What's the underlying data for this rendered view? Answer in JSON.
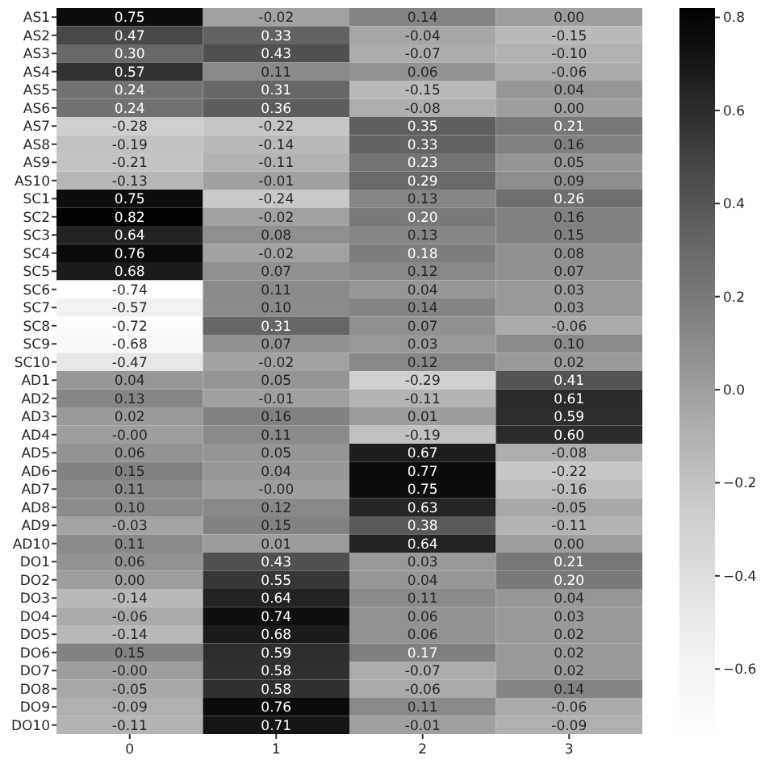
{
  "chart_data": {
    "type": "heatmap",
    "categories": [
      "0",
      "1",
      "2",
      "3"
    ],
    "y_categories": [
      "AS1",
      "AS2",
      "AS3",
      "AS4",
      "AS5",
      "AS6",
      "AS7",
      "AS8",
      "AS9",
      "AS10",
      "SC1",
      "SC2",
      "SC3",
      "SC4",
      "SC5",
      "SC6",
      "SC7",
      "SC8",
      "SC9",
      "SC10",
      "AD1",
      "AD2",
      "AD3",
      "AD4",
      "AD5",
      "AD6",
      "AD7",
      "AD8",
      "AD9",
      "AD10",
      "DO1",
      "DO2",
      "DO3",
      "DO4",
      "DO5",
      "DO6",
      "DO7",
      "DO8",
      "DO9",
      "DO10"
    ],
    "cells": [
      [
        0.75,
        -0.02,
        0.14,
        0.0
      ],
      [
        0.47,
        0.33,
        -0.04,
        -0.15
      ],
      [
        0.3,
        0.43,
        -0.07,
        -0.1
      ],
      [
        0.57,
        0.11,
        0.06,
        -0.06
      ],
      [
        0.24,
        0.31,
        -0.15,
        0.04
      ],
      [
        0.24,
        0.36,
        -0.08,
        0.0
      ],
      [
        -0.28,
        -0.22,
        0.35,
        0.21
      ],
      [
        -0.19,
        -0.14,
        0.33,
        0.16
      ],
      [
        -0.21,
        -0.11,
        0.23,
        0.05
      ],
      [
        -0.13,
        -0.01,
        0.29,
        0.09
      ],
      [
        0.75,
        -0.24,
        0.13,
        0.26
      ],
      [
        0.82,
        -0.02,
        0.2,
        0.16
      ],
      [
        0.64,
        0.08,
        0.13,
        0.15
      ],
      [
        0.76,
        -0.02,
        0.18,
        0.08
      ],
      [
        0.68,
        0.07,
        0.12,
        0.07
      ],
      [
        -0.74,
        0.11,
        0.04,
        0.03
      ],
      [
        -0.57,
        0.1,
        0.14,
        0.03
      ],
      [
        -0.72,
        0.31,
        0.07,
        -0.06
      ],
      [
        -0.68,
        0.07,
        0.03,
        0.1
      ],
      [
        -0.47,
        -0.02,
        0.12,
        0.02
      ],
      [
        0.04,
        0.05,
        -0.29,
        0.41
      ],
      [
        0.13,
        -0.01,
        -0.11,
        0.61
      ],
      [
        0.02,
        0.16,
        0.01,
        0.59
      ],
      [
        0.0,
        0.11,
        -0.19,
        0.6
      ],
      [
        0.06,
        0.05,
        0.67,
        -0.08
      ],
      [
        0.15,
        0.04,
        0.77,
        -0.22
      ],
      [
        0.11,
        0.0,
        0.75,
        -0.16
      ],
      [
        0.1,
        0.12,
        0.63,
        -0.05
      ],
      [
        -0.03,
        0.15,
        0.38,
        -0.11
      ],
      [
        0.11,
        0.01,
        0.64,
        0.0
      ],
      [
        0.06,
        0.43,
        0.03,
        0.21
      ],
      [
        0.0,
        0.55,
        0.04,
        0.2
      ],
      [
        -0.14,
        0.64,
        0.11,
        0.04
      ],
      [
        -0.06,
        0.74,
        0.06,
        0.03
      ],
      [
        -0.14,
        0.68,
        0.06,
        0.02
      ],
      [
        0.15,
        0.59,
        0.17,
        0.02
      ],
      [
        0.0,
        0.58,
        -0.07,
        0.02
      ],
      [
        -0.05,
        0.58,
        -0.06,
        0.14
      ],
      [
        -0.09,
        0.76,
        0.11,
        -0.06
      ],
      [
        -0.11,
        0.71,
        -0.01,
        -0.09
      ]
    ],
    "cell_labels": [
      [
        "0.75",
        "-0.02",
        "0.14",
        "0.00"
      ],
      [
        "0.47",
        "0.33",
        "-0.04",
        "-0.15"
      ],
      [
        "0.30",
        "0.43",
        "-0.07",
        "-0.10"
      ],
      [
        "0.57",
        "0.11",
        "0.06",
        "-0.06"
      ],
      [
        "0.24",
        "0.31",
        "-0.15",
        "0.04"
      ],
      [
        "0.24",
        "0.36",
        "-0.08",
        "0.00"
      ],
      [
        "-0.28",
        "-0.22",
        "0.35",
        "0.21"
      ],
      [
        "-0.19",
        "-0.14",
        "0.33",
        "0.16"
      ],
      [
        "-0.21",
        "-0.11",
        "0.23",
        "0.05"
      ],
      [
        "-0.13",
        "-0.01",
        "0.29",
        "0.09"
      ],
      [
        "0.75",
        "-0.24",
        "0.13",
        "0.26"
      ],
      [
        "0.82",
        "-0.02",
        "0.20",
        "0.16"
      ],
      [
        "0.64",
        "0.08",
        "0.13",
        "0.15"
      ],
      [
        "0.76",
        "-0.02",
        "0.18",
        "0.08"
      ],
      [
        "0.68",
        "0.07",
        "0.12",
        "0.07"
      ],
      [
        "-0.74",
        "0.11",
        "0.04",
        "0.03"
      ],
      [
        "-0.57",
        "0.10",
        "0.14",
        "0.03"
      ],
      [
        "-0.72",
        "0.31",
        "0.07",
        "-0.06"
      ],
      [
        "-0.68",
        "0.07",
        "0.03",
        "0.10"
      ],
      [
        "-0.47",
        "-0.02",
        "0.12",
        "0.02"
      ],
      [
        "0.04",
        "0.05",
        "-0.29",
        "0.41"
      ],
      [
        "0.13",
        "-0.01",
        "-0.11",
        "0.61"
      ],
      [
        "0.02",
        "0.16",
        "0.01",
        "0.59"
      ],
      [
        "-0.00",
        "0.11",
        "-0.19",
        "0.60"
      ],
      [
        "0.06",
        "0.05",
        "0.67",
        "-0.08"
      ],
      [
        "0.15",
        "0.04",
        "0.77",
        "-0.22"
      ],
      [
        "0.11",
        "-0.00",
        "0.75",
        "-0.16"
      ],
      [
        "0.10",
        "0.12",
        "0.63",
        "-0.05"
      ],
      [
        "-0.03",
        "0.15",
        "0.38",
        "-0.11"
      ],
      [
        "0.11",
        "0.01",
        "0.64",
        "0.00"
      ],
      [
        "0.06",
        "0.43",
        "0.03",
        "0.21"
      ],
      [
        "0.00",
        "0.55",
        "0.04",
        "0.20"
      ],
      [
        "-0.14",
        "0.64",
        "0.11",
        "0.04"
      ],
      [
        "-0.06",
        "0.74",
        "0.06",
        "0.03"
      ],
      [
        "-0.14",
        "0.68",
        "0.06",
        "0.02"
      ],
      [
        "0.15",
        "0.59",
        "0.17",
        "0.02"
      ],
      [
        "-0.00",
        "0.58",
        "-0.07",
        "0.02"
      ],
      [
        "-0.05",
        "0.58",
        "-0.06",
        "0.14"
      ],
      [
        "-0.09",
        "0.76",
        "0.11",
        "-0.06"
      ],
      [
        "-0.11",
        "0.71",
        "-0.01",
        "-0.09"
      ]
    ],
    "clim": [
      -0.74,
      0.82
    ],
    "cticks": [
      {
        "value": -0.6,
        "label": "−0.6"
      },
      {
        "value": -0.4,
        "label": "−0.4"
      },
      {
        "value": -0.2,
        "label": "−0.2"
      },
      "0.0",
      {
        "value": 0.2,
        "label": "0.2"
      },
      {
        "value": 0.4,
        "label": "0.4"
      },
      {
        "value": 0.6,
        "label": "0.6"
      },
      {
        "value": 0.8,
        "label": "0.8"
      }
    ]
  }
}
